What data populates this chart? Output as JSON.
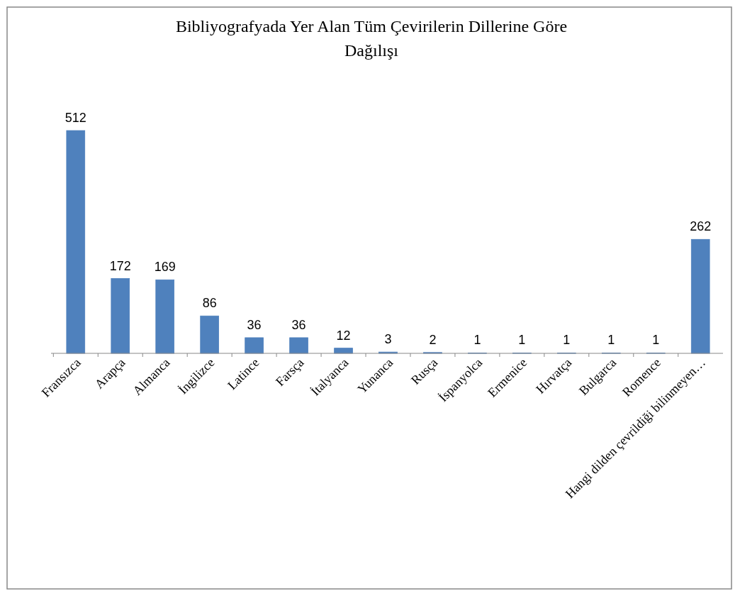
{
  "chart_data": {
    "type": "bar",
    "title": "Bibliyografyada Yer Alan Tüm Çevirilerin Dillerine Göre Dağılışı",
    "categories": [
      "Fransızca",
      "Arapça",
      "Almanca",
      "İngilizce",
      "Latince",
      "Farsça",
      "İtalyanca",
      "Yunanca",
      "Rusça",
      "İspanyolca",
      "Ermenice",
      "Hırvatça",
      "Bulgarca",
      "Romence",
      "Hangi dilden çevrildiği bilinmeyen…"
    ],
    "values": [
      512,
      172,
      169,
      86,
      36,
      36,
      12,
      3,
      2,
      1,
      1,
      1,
      1,
      1,
      262
    ],
    "color": "#4f81bd",
    "data_labels": true
  }
}
